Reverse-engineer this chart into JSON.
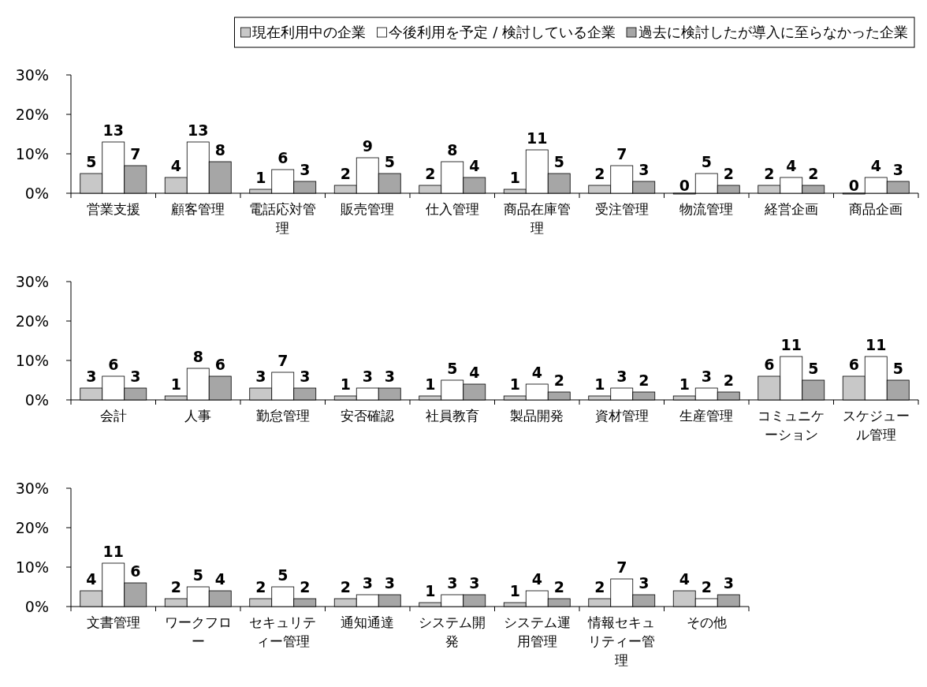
{
  "chart_data": [
    {
      "type": "bar",
      "legend": "top",
      "data_labels": true,
      "categories": [
        "営業支援",
        "顧客管理",
        "電話応対管理",
        "販売管理",
        "仕入管理",
        "商品在庫管理",
        "受注管理",
        "物流管理",
        "経営企画",
        "商品企画"
      ],
      "ylim": [
        0,
        30
      ],
      "yticks": [
        {
          "value": 0,
          "label": "0%"
        },
        {
          "value": 10,
          "label": "10%"
        },
        {
          "value": 20,
          "label": "20%"
        },
        {
          "value": 30,
          "label": "30%"
        }
      ],
      "series": [
        {
          "name": "現在利用中の企業",
          "color": "#c8c8c8",
          "values": [
            5,
            4,
            1,
            2,
            2,
            1,
            2,
            0,
            2,
            0
          ]
        },
        {
          "name": "今後利用を予定 / 検討している企業",
          "color": "#ffffff",
          "values": [
            13,
            13,
            6,
            9,
            8,
            11,
            7,
            5,
            4,
            4
          ]
        },
        {
          "name": "過去に検討したが導入に至らなかった企業",
          "color": "#a6a6a6",
          "values": [
            7,
            8,
            3,
            5,
            4,
            5,
            3,
            2,
            2,
            3
          ]
        }
      ]
    },
    {
      "type": "bar",
      "data_labels": true,
      "categories": [
        "会計",
        "人事",
        "勤怠管理",
        "安否確認",
        "社員教育",
        "製品開発",
        "資材管理",
        "生産管理",
        "コミュニケーション",
        "スケジュール管理"
      ],
      "ylim": [
        0,
        30
      ],
      "yticks": [
        {
          "value": 0,
          "label": "0%"
        },
        {
          "value": 10,
          "label": "10%"
        },
        {
          "value": 20,
          "label": "20%"
        },
        {
          "value": 30,
          "label": "30%"
        }
      ],
      "series": [
        {
          "color": "#c8c8c8",
          "values": [
            3,
            1,
            3,
            1,
            1,
            1,
            1,
            1,
            6,
            6
          ]
        },
        {
          "color": "#ffffff",
          "values": [
            6,
            8,
            7,
            3,
            5,
            4,
            3,
            3,
            11,
            11
          ]
        },
        {
          "color": "#a6a6a6",
          "values": [
            3,
            6,
            3,
            3,
            4,
            2,
            2,
            2,
            5,
            5
          ]
        }
      ]
    },
    {
      "type": "bar",
      "data_labels": true,
      "categories": [
        "文書管理",
        "ワークフロー",
        "セキュリティー管理",
        "通知通達",
        "システム開発",
        "システム運用管理",
        "情報セキュリティー管理",
        "その他"
      ],
      "ylim": [
        0,
        30
      ],
      "yticks": [
        {
          "value": 0,
          "label": "0%"
        },
        {
          "value": 10,
          "label": "10%"
        },
        {
          "value": 20,
          "label": "20%"
        },
        {
          "value": 30,
          "label": "30%"
        }
      ],
      "series": [
        {
          "color": "#c8c8c8",
          "values": [
            4,
            2,
            2,
            2,
            1,
            1,
            2,
            4
          ]
        },
        {
          "color": "#ffffff",
          "values": [
            11,
            5,
            5,
            3,
            3,
            4,
            7,
            2
          ]
        },
        {
          "color": "#a6a6a6",
          "values": [
            6,
            4,
            2,
            3,
            3,
            2,
            3,
            3
          ]
        }
      ]
    }
  ]
}
